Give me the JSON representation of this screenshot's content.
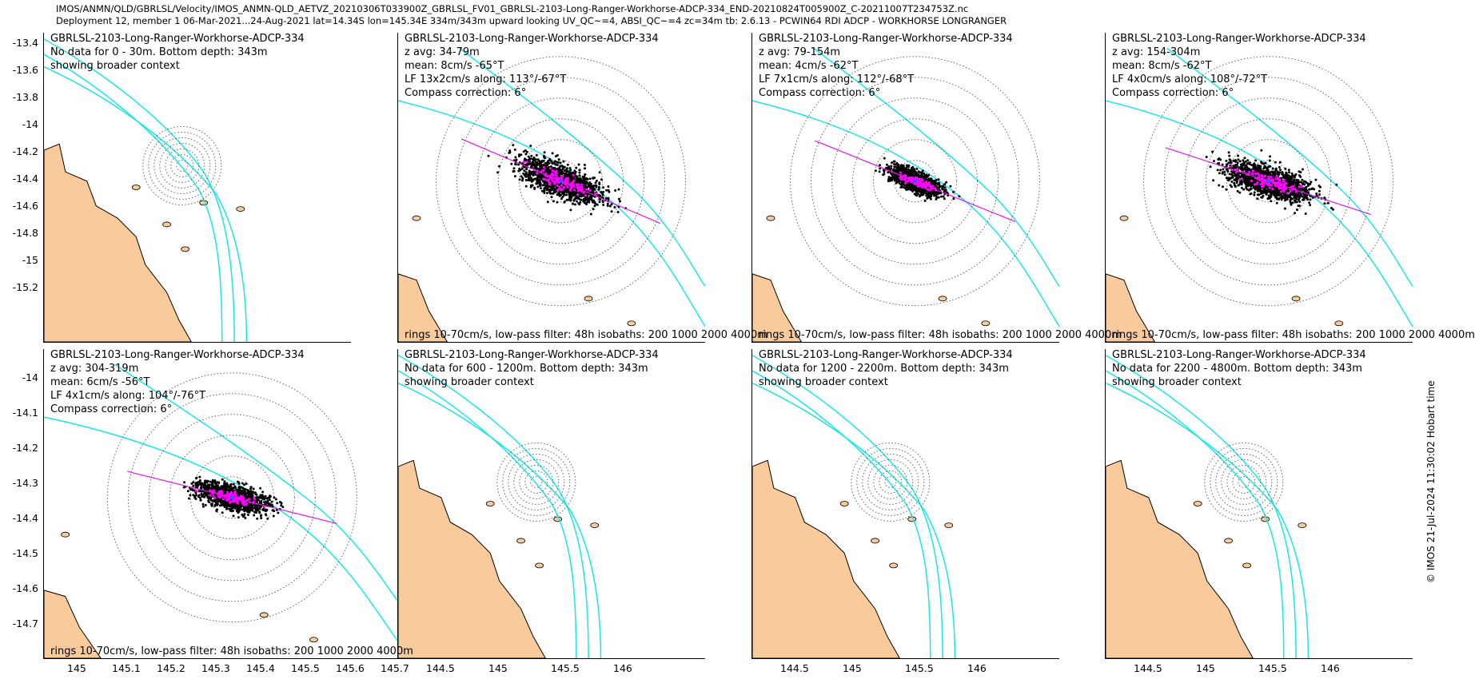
{
  "header": {
    "line1": "IMOS/ANMN/QLD/GBRLSL/Velocity/IMOS_ANMN-QLD_AETVZ_20210306T033900Z_GBRLSL_FV01_GBRLSL-2103-Long-Ranger-Workhorse-ADCP-334_END-20210824T005900Z_C-20211007T234753Z.nc",
    "line2": "Deployment 12, member 1 06-Mar-2021...24-Aug-2021 lat=14.34S lon=145.34E 334m/343m upward looking UV_QC~=4, ABSI_QC~=4 zc=34m tb: 2.6.13 - PCWIN64 RDI ADCP - WORKHORSE LONGRANGER"
  },
  "timestamp": "© IMOS 21-Jul-2024 11:30:02 Hobart time",
  "colors": {
    "land": "#f9cb9c",
    "isobath": "#19e6e6",
    "scatter": "#000000",
    "lowpass": "#ff00ff",
    "axis_line": "#e619e6",
    "rings": "#808080"
  },
  "chart_data": [
    {
      "type": "scatter",
      "lines": [
        "GBRLSL-2103-Long-Ranger-Workhorse-ADCP-334",
        "No data for 0 - 30m. Bottom depth: 343m",
        "showing broader context"
      ],
      "yticks": [
        "-13.4",
        "-13.6",
        "-13.8",
        "-14",
        "-14.2",
        "-14.4",
        "-14.6",
        "-14.8",
        "-15",
        "-15.2"
      ],
      "xticks": [],
      "has_data": false,
      "footer": ""
    },
    {
      "type": "scatter",
      "lines": [
        "GBRLSL-2103-Long-Ranger-Workhorse-ADCP-334",
        "z avg: 34-79m",
        "mean: 8cm/s -65°T",
        "LF 13x2cm/s along: 113°/-67°T",
        "Compass correction: 6°"
      ],
      "yticks": [],
      "xticks": [],
      "has_data": true,
      "mean_speed_cm_s": 8,
      "along_deg": 113,
      "footer": "rings 10-70cm/s, low-pass filter: 48h isobaths: 200 1000 2000 4000m"
    },
    {
      "type": "scatter",
      "lines": [
        "GBRLSL-2103-Long-Ranger-Workhorse-ADCP-334",
        "z avg: 79-154m",
        "mean: 4cm/s -62°T",
        "LF 7x1cm/s along: 112°/-68°T",
        "Compass correction: 6°"
      ],
      "yticks": [],
      "xticks": [],
      "has_data": true,
      "mean_speed_cm_s": 4,
      "along_deg": 112,
      "footer": "rings 10-70cm/s, low-pass filter: 48h isobaths: 200 1000 2000 4000m"
    },
    {
      "type": "scatter",
      "lines": [
        "GBRLSL-2103-Long-Ranger-Workhorse-ADCP-334",
        "z avg: 154-304m",
        "mean: 8cm/s -62°T",
        "LF 4x0cm/s along: 108°/-72°T",
        "Compass correction: 6°"
      ],
      "yticks": [],
      "xticks": [],
      "has_data": true,
      "mean_speed_cm_s": 8,
      "along_deg": 108,
      "footer": "rings 10-70cm/s, low-pass filter: 48h isobaths: 200 1000 2000 4000m"
    },
    {
      "type": "scatter",
      "lines": [
        "GBRLSL-2103-Long-Ranger-Workhorse-ADCP-334",
        "z avg: 304-319m",
        "mean: 6cm/s -56°T",
        "LF 4x1cm/s along: 104°/-76°T",
        "Compass correction: 6°"
      ],
      "yticks": [
        "-14",
        "-14.1",
        "-14.2",
        "-14.3",
        "-14.4",
        "-14.5",
        "-14.6",
        "-14.7"
      ],
      "xticks": [
        "145",
        "145.1",
        "145.2",
        "145.3",
        "145.4",
        "145.5",
        "145.6",
        "145.7"
      ],
      "has_data": true,
      "mean_speed_cm_s": 6,
      "along_deg": 104,
      "footer": "rings 10-70cm/s, low-pass filter: 48h isobaths: 200 1000 2000 4000m"
    },
    {
      "type": "scatter",
      "lines": [
        "GBRLSL-2103-Long-Ranger-Workhorse-ADCP-334",
        "No data for 600 - 1200m. Bottom depth: 343m",
        "showing broader context"
      ],
      "yticks": [],
      "xticks": [
        "144.5",
        "145",
        "145.5",
        "146"
      ],
      "has_data": false,
      "footer": ""
    },
    {
      "type": "scatter",
      "lines": [
        "GBRLSL-2103-Long-Ranger-Workhorse-ADCP-334",
        "No data for 1200 - 2200m. Bottom depth: 343m",
        "showing broader context"
      ],
      "yticks": [],
      "xticks": [
        "144.5",
        "145",
        "145.5",
        "146"
      ],
      "has_data": false,
      "footer": ""
    },
    {
      "type": "scatter",
      "lines": [
        "GBRLSL-2103-Long-Ranger-Workhorse-ADCP-334",
        "No data for 2200 - 4800m. Bottom depth: 343m",
        "showing broader context"
      ],
      "yticks": [],
      "xticks": [
        "144.5",
        "145",
        "145.5",
        "146"
      ],
      "has_data": false,
      "footer": ""
    }
  ]
}
